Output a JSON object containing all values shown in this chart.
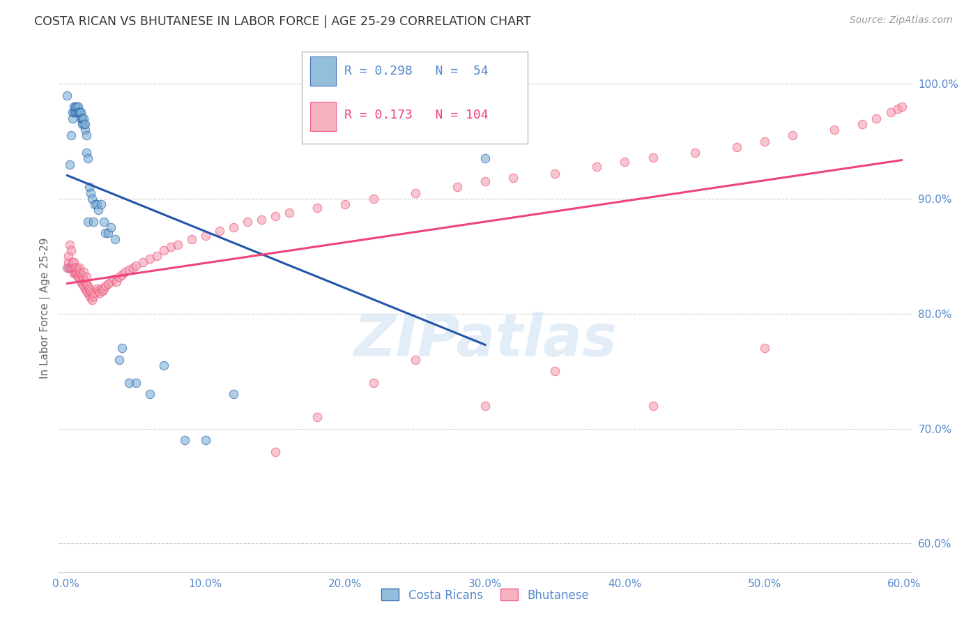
{
  "title": "COSTA RICAN VS BHUTANESE IN LABOR FORCE | AGE 25-29 CORRELATION CHART",
  "source": "Source: ZipAtlas.com",
  "ylabel": "In Labor Force | Age 25-29",
  "y_ticks_right": [
    "60.0%",
    "70.0%",
    "80.0%",
    "90.0%",
    "100.0%"
  ],
  "y_ticks_right_vals": [
    0.6,
    0.7,
    0.8,
    0.9,
    1.0
  ],
  "x_ticks_vals": [
    0.0,
    0.1,
    0.2,
    0.3,
    0.4,
    0.5,
    0.6
  ],
  "x_ticks_labels": [
    "0.0%",
    "10.0%",
    "20.0%",
    "30.0%",
    "40.0%",
    "50.0%",
    "60.0%"
  ],
  "xlim": [
    -0.005,
    0.605
  ],
  "ylim": [
    0.575,
    1.035
  ],
  "costa_rican_R": 0.298,
  "costa_rican_N": 54,
  "bhutanese_R": 0.173,
  "bhutanese_N": 104,
  "costa_rican_color": "#7AB0D4",
  "bhutanese_color": "#F4A0B0",
  "trend_costa_rican_color": "#2255AA",
  "trend_bhutanese_color": "#EE4477",
  "watermark_color": "#C8DCF0",
  "grid_color": "#CCCCCC",
  "title_color": "#333333",
  "source_color": "#999999",
  "axis_label_color": "#5588CC",
  "background_color": "#FFFFFF",
  "costa_rica_x": [
    0.001,
    0.002,
    0.003,
    0.004,
    0.005,
    0.005,
    0.006,
    0.006,
    0.007,
    0.007,
    0.008,
    0.008,
    0.009,
    0.009,
    0.01,
    0.01,
    0.01,
    0.011,
    0.011,
    0.012,
    0.012,
    0.012,
    0.013,
    0.013,
    0.014,
    0.014,
    0.015,
    0.015,
    0.016,
    0.016,
    0.017,
    0.018,
    0.019,
    0.02,
    0.021,
    0.022,
    0.023,
    0.025,
    0.027,
    0.028,
    0.03,
    0.032,
    0.035,
    0.038,
    0.04,
    0.045,
    0.05,
    0.06,
    0.07,
    0.085,
    0.1,
    0.12,
    0.25,
    0.3
  ],
  "costa_rica_y": [
    0.99,
    0.84,
    0.93,
    0.955,
    0.97,
    0.975,
    0.975,
    0.98,
    0.975,
    0.98,
    0.975,
    0.98,
    0.975,
    0.98,
    0.975,
    0.975,
    0.975,
    0.97,
    0.975,
    0.97,
    0.965,
    0.97,
    0.965,
    0.97,
    0.96,
    0.965,
    0.94,
    0.955,
    0.88,
    0.935,
    0.91,
    0.905,
    0.9,
    0.88,
    0.895,
    0.895,
    0.89,
    0.895,
    0.88,
    0.87,
    0.87,
    0.875,
    0.865,
    0.76,
    0.77,
    0.74,
    0.74,
    0.73,
    0.755,
    0.69,
    0.69,
    0.73,
    0.96,
    0.935
  ],
  "bhutanese_x": [
    0.001,
    0.002,
    0.002,
    0.003,
    0.003,
    0.004,
    0.004,
    0.005,
    0.005,
    0.006,
    0.006,
    0.006,
    0.007,
    0.007,
    0.008,
    0.008,
    0.008,
    0.009,
    0.009,
    0.01,
    0.01,
    0.01,
    0.011,
    0.011,
    0.012,
    0.012,
    0.013,
    0.013,
    0.013,
    0.014,
    0.014,
    0.015,
    0.015,
    0.015,
    0.016,
    0.016,
    0.017,
    0.017,
    0.018,
    0.018,
    0.019,
    0.019,
    0.02,
    0.021,
    0.022,
    0.023,
    0.024,
    0.025,
    0.026,
    0.027,
    0.028,
    0.03,
    0.032,
    0.034,
    0.036,
    0.038,
    0.04,
    0.042,
    0.045,
    0.048,
    0.05,
    0.055,
    0.06,
    0.065,
    0.07,
    0.075,
    0.08,
    0.09,
    0.1,
    0.11,
    0.12,
    0.13,
    0.14,
    0.15,
    0.16,
    0.18,
    0.2,
    0.22,
    0.25,
    0.28,
    0.3,
    0.32,
    0.35,
    0.38,
    0.4,
    0.42,
    0.45,
    0.48,
    0.5,
    0.52,
    0.55,
    0.57,
    0.58,
    0.59,
    0.595,
    0.598,
    0.25,
    0.3,
    0.35,
    0.5,
    0.42,
    0.15,
    0.18,
    0.22
  ],
  "bhutanese_y": [
    0.84,
    0.845,
    0.85,
    0.84,
    0.86,
    0.84,
    0.855,
    0.84,
    0.845,
    0.835,
    0.84,
    0.845,
    0.835,
    0.84,
    0.835,
    0.836,
    0.84,
    0.832,
    0.838,
    0.83,
    0.836,
    0.84,
    0.828,
    0.835,
    0.826,
    0.833,
    0.824,
    0.83,
    0.836,
    0.822,
    0.828,
    0.82,
    0.826,
    0.832,
    0.818,
    0.824,
    0.816,
    0.822,
    0.814,
    0.82,
    0.812,
    0.818,
    0.815,
    0.818,
    0.822,
    0.82,
    0.818,
    0.822,
    0.82,
    0.822,
    0.824,
    0.826,
    0.828,
    0.83,
    0.828,
    0.832,
    0.834,
    0.836,
    0.838,
    0.84,
    0.842,
    0.845,
    0.848,
    0.85,
    0.855,
    0.858,
    0.86,
    0.865,
    0.868,
    0.872,
    0.875,
    0.88,
    0.882,
    0.885,
    0.888,
    0.892,
    0.895,
    0.9,
    0.905,
    0.91,
    0.915,
    0.918,
    0.922,
    0.928,
    0.932,
    0.936,
    0.94,
    0.945,
    0.95,
    0.955,
    0.96,
    0.965,
    0.97,
    0.975,
    0.978,
    0.98,
    0.76,
    0.72,
    0.75,
    0.77,
    0.72,
    0.68,
    0.71,
    0.74
  ]
}
